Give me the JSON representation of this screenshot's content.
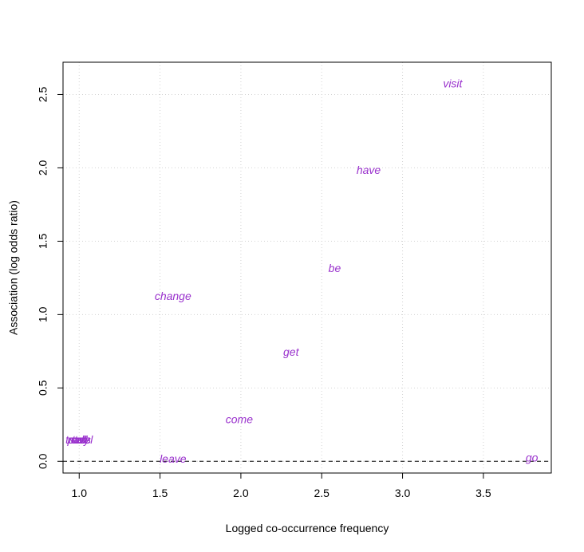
{
  "chart_data": {
    "type": "scatter",
    "title": "",
    "xlabel": "Logged co-occurrence frequency",
    "ylabel": "Association (log odds ratio)",
    "xlim": [
      0.9,
      3.92
    ],
    "ylim": [
      -0.08,
      2.72
    ],
    "x_ticks": [
      1.0,
      1.5,
      2.0,
      2.5,
      3.0,
      3.5
    ],
    "x_tick_labels": [
      "1.0",
      "1.5",
      "2.0",
      "2.5",
      "3.0",
      "3.5"
    ],
    "y_ticks": [
      0.0,
      0.5,
      1.0,
      1.5,
      2.0,
      2.5
    ],
    "y_tick_labels": [
      "0.0",
      "0.5",
      "1.0",
      "1.5",
      "2.0",
      "2.5"
    ],
    "grid": true,
    "reference_line_y": 0,
    "label_color": "#9a32cd",
    "points": [
      {
        "label": "visit",
        "x": 3.31,
        "y": 2.57
      },
      {
        "label": "have",
        "x": 2.79,
        "y": 1.98
      },
      {
        "label": "be",
        "x": 2.58,
        "y": 1.31
      },
      {
        "label": "change",
        "x": 1.58,
        "y": 1.12
      },
      {
        "label": "get",
        "x": 2.31,
        "y": 0.74
      },
      {
        "label": "come",
        "x": 1.99,
        "y": 0.28
      },
      {
        "label": "leave",
        "x": 1.58,
        "y": 0.01
      },
      {
        "label": "go",
        "x": 3.8,
        "y": 0.02
      },
      {
        "label": "stay",
        "x": 1.0,
        "y": 0.14
      },
      {
        "label": "tell",
        "x": 1.0,
        "y": 0.14
      },
      {
        "label": "travel",
        "x": 1.0,
        "y": 0.14
      },
      {
        "label": "call",
        "x": 1.0,
        "y": 0.14
      },
      {
        "label": "pass",
        "x": 1.0,
        "y": 0.14
      }
    ]
  }
}
